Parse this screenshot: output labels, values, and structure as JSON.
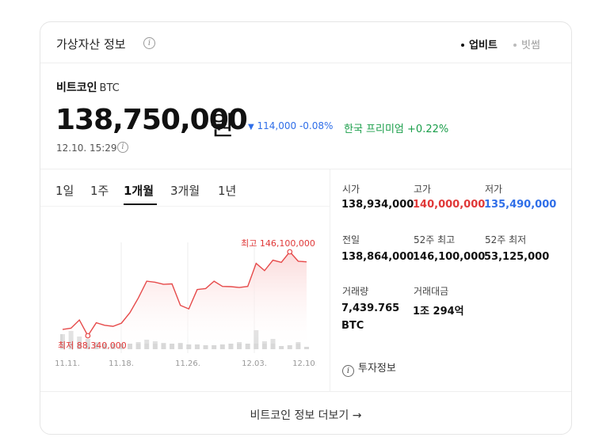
{
  "header": {
    "title": "가상자산 정보",
    "info_glyph": "i",
    "sources": [
      {
        "label": "업비트",
        "active": true
      },
      {
        "label": "빗썸",
        "active": false
      }
    ]
  },
  "coin": {
    "name": "비트코인",
    "symbol": "BTC",
    "price": "138,750,000",
    "unit": "원",
    "change_arrow": "▼",
    "change": "114,000 -0.08%",
    "premium": "한국 프리미엄 +0.22%",
    "timestamp": "12.10. 15:29"
  },
  "tabs": [
    {
      "label": "1일",
      "active": false
    },
    {
      "label": "1주",
      "active": false
    },
    {
      "label": "1개월",
      "active": true
    },
    {
      "label": "3개월",
      "active": false
    },
    {
      "label": "1년",
      "active": false
    }
  ],
  "chart_data": {
    "type": "line",
    "series": [
      {
        "values": [
          92.0,
          92.6,
          96.5,
          89.0,
          95.2,
          94.0,
          93.5,
          95.0,
          100.0,
          107.0,
          115.0,
          114.5,
          113.5,
          113.7,
          103.5,
          101.8,
          111.0,
          111.5,
          115.0,
          112.5,
          112.4,
          112.0,
          112.5,
          123.5,
          120.0,
          125.0,
          124.0,
          129.0,
          124.5,
          124.2
        ]
      }
    ],
    "volume": [
      19,
      23,
      16,
      13,
      9,
      7,
      7,
      7,
      7,
      9,
      12,
      10,
      8,
      7,
      8,
      6,
      6,
      5,
      5,
      6,
      7,
      9,
      7,
      24,
      10,
      13,
      4,
      5,
      9,
      3
    ],
    "annotations": {
      "max_label": "최고 146,100,000",
      "min_label": "최저 88,340,000"
    },
    "x_tick_labels": [
      "11.11.",
      "11.18.",
      "11.26.",
      "12.03.",
      "12.10."
    ],
    "grid": true,
    "colors": {
      "line": "#e64a4a",
      "fill_top": "#fbd9d9",
      "volume": "#d8d8d8",
      "grid": "#eeeeee",
      "label": "#e03838",
      "tick": "#999999"
    }
  },
  "stats": {
    "open_label": "시가",
    "open": "138,934,000",
    "high_label": "고가",
    "high": "140,000,000",
    "low_label": "저가",
    "low": "135,490,000",
    "prev_label": "전일",
    "prev": "138,864,000",
    "w52_high_label": "52주 최고",
    "w52_high": "146,100,000",
    "w52_low_label": "52주 최저",
    "w52_low": "53,125,000",
    "volume_label": "거래량",
    "volume_line1": "7,439.765",
    "volume_line2": "BTC",
    "trade_amount_label": "거래대금",
    "trade_amount": "1조 294억"
  },
  "invest_info": {
    "icon_glyph": "i",
    "label": "투자정보"
  },
  "footer": {
    "more_label": "비트코인 정보 더보기",
    "arrow": "→"
  }
}
